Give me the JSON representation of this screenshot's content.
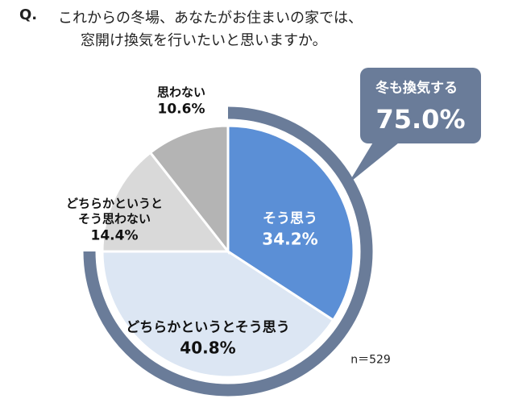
{
  "chart_data": {
    "type": "pie",
    "question_label": "Q.",
    "title": [
      "これからの冬場、あなたがお住まいの家では、",
      "窓開け換気を行いたいと思いますか。"
    ],
    "categories": [
      "そう思う",
      "どちらかというとそう思う",
      "どちらかというと\nそう思わない",
      "思わない"
    ],
    "values": [
      34.2,
      40.8,
      14.4,
      10.6
    ],
    "value_labels": [
      "34.2%",
      "40.8%",
      "14.4%",
      "10.6%"
    ],
    "colors": [
      "#5b8fd6",
      "#dce6f3",
      "#d9d9d9",
      "#b4b4b4"
    ],
    "annotation": {
      "text": "冬も換気する",
      "value": 75.0,
      "value_label": "75.0%",
      "color": "#6a7c99"
    },
    "note": "n＝529"
  }
}
